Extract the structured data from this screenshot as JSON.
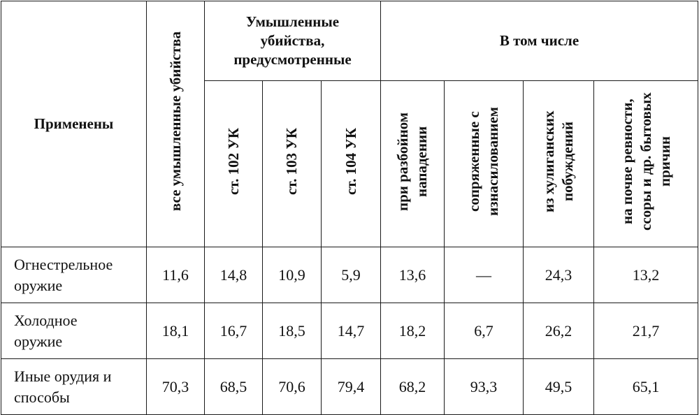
{
  "header": {
    "applied": "Применены",
    "all_murders": "все умышленные убийства",
    "group_provided": "Умышленные убийства, предусмотренные",
    "group_including": "В том числе",
    "art102": "ст. 102 УК",
    "art103": "ст. 103 УК",
    "art104": "ст. 104 УК",
    "robbery": "при разбойном нападении",
    "rape": "сопряженные с изнасилованием",
    "hooligan": "из хулиганских побуждений",
    "jealousy": "на почве ревности, ссоры и др. бытовых причин"
  },
  "rows": [
    {
      "label": "Огнестрельное оружие",
      "values": [
        "11,6",
        "14,8",
        "10,9",
        "5,9",
        "13,6",
        "—",
        "24,3",
        "13,2"
      ]
    },
    {
      "label": "Холодное оружие",
      "values": [
        "18,1",
        "16,7",
        "18,5",
        "14,7",
        "18,2",
        "6,7",
        "26,2",
        "21,7"
      ]
    },
    {
      "label": "Иные орудия и способы",
      "values": [
        "70,3",
        "68,5",
        "70,6",
        "79,4",
        "68,2",
        "93,3",
        "49,5",
        "65,1"
      ]
    }
  ]
}
